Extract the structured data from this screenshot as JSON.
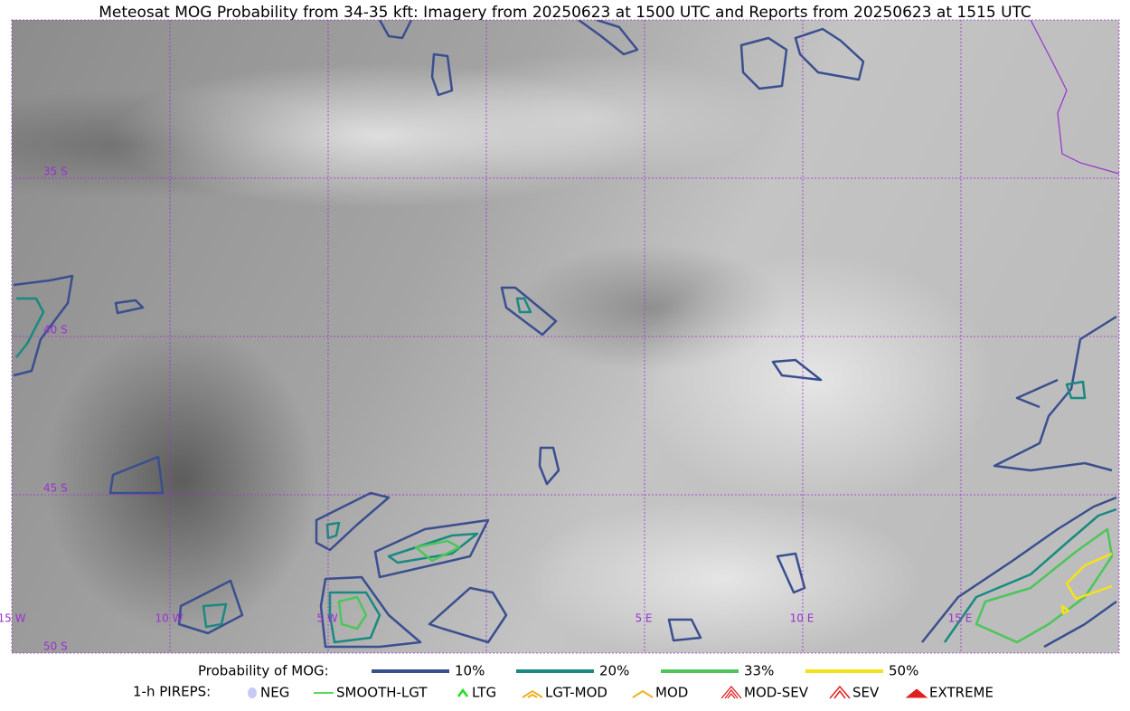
{
  "map": {
    "title": "Meteosat MOG Probability from 34-35 kft: Imagery from 20250623 at 1500 UTC and Reports from 20250623 at 1515 UTC",
    "latitude_labels": [
      "35 S",
      "40 S",
      "45 S",
      "50 S"
    ],
    "longitude_labels": [
      "15 W",
      "10 W",
      "5 W",
      "5 E",
      "10 E",
      "15 E"
    ],
    "label_color": "#9b30d0"
  },
  "legend": {
    "mog_title": "Probability of MOG:",
    "mog_items": [
      {
        "label": "10%",
        "color": "#3a4f8f"
      },
      {
        "label": "20%",
        "color": "#1a8a80"
      },
      {
        "label": "33%",
        "color": "#4cc65a"
      },
      {
        "label": "50%",
        "color": "#f5e21a"
      }
    ],
    "pirep_title": "1-h PIREPS:",
    "pirep_items": [
      {
        "label": "NEG",
        "color": "#b0b0f0"
      },
      {
        "label": "SMOOTH-LGT",
        "color": "#22cc22"
      },
      {
        "label": "LTG",
        "color": "#22dd22"
      },
      {
        "label": "LGT-MOD",
        "color": "#f0b020"
      },
      {
        "label": "MOD",
        "color": "#f0b020"
      },
      {
        "label": "MOD-SEV",
        "color": "#e02020"
      },
      {
        "label": "SEV",
        "color": "#e02020"
      },
      {
        "label": "EXTREME",
        "color": "#e02020"
      }
    ]
  }
}
